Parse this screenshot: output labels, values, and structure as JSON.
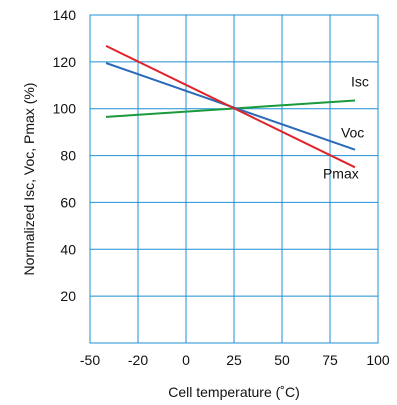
{
  "chart_data": {
    "type": "line",
    "title": "",
    "xlabel": "Cell temperature (˚C)",
    "ylabel": "Normalized Isc, Voc, Pmax (%)",
    "xlim": [
      -50,
      100
    ],
    "ylim": [
      0,
      140
    ],
    "x_ticks": [
      "-50",
      "-20",
      "0",
      "25",
      "50",
      "75",
      "100"
    ],
    "y_ticks": [
      "20",
      "40",
      "60",
      "80",
      "100",
      "120",
      "140"
    ],
    "grid": true,
    "legend": "none",
    "series": [
      {
        "name": "Isc",
        "color": "#1a9a3c",
        "x": [
          -40,
          88
        ],
        "y": [
          96.5,
          103.5
        ]
      },
      {
        "name": "Voc",
        "color": "#2a6ab8",
        "x": [
          -40,
          88
        ],
        "y": [
          119.5,
          82.5
        ]
      },
      {
        "name": "Pmax",
        "color": "#e0242c",
        "x": [
          -40,
          88
        ],
        "y": [
          126.8,
          75
        ]
      }
    ]
  },
  "colors": {
    "grid": "#1e90d6",
    "axis": "#1e90d6"
  }
}
